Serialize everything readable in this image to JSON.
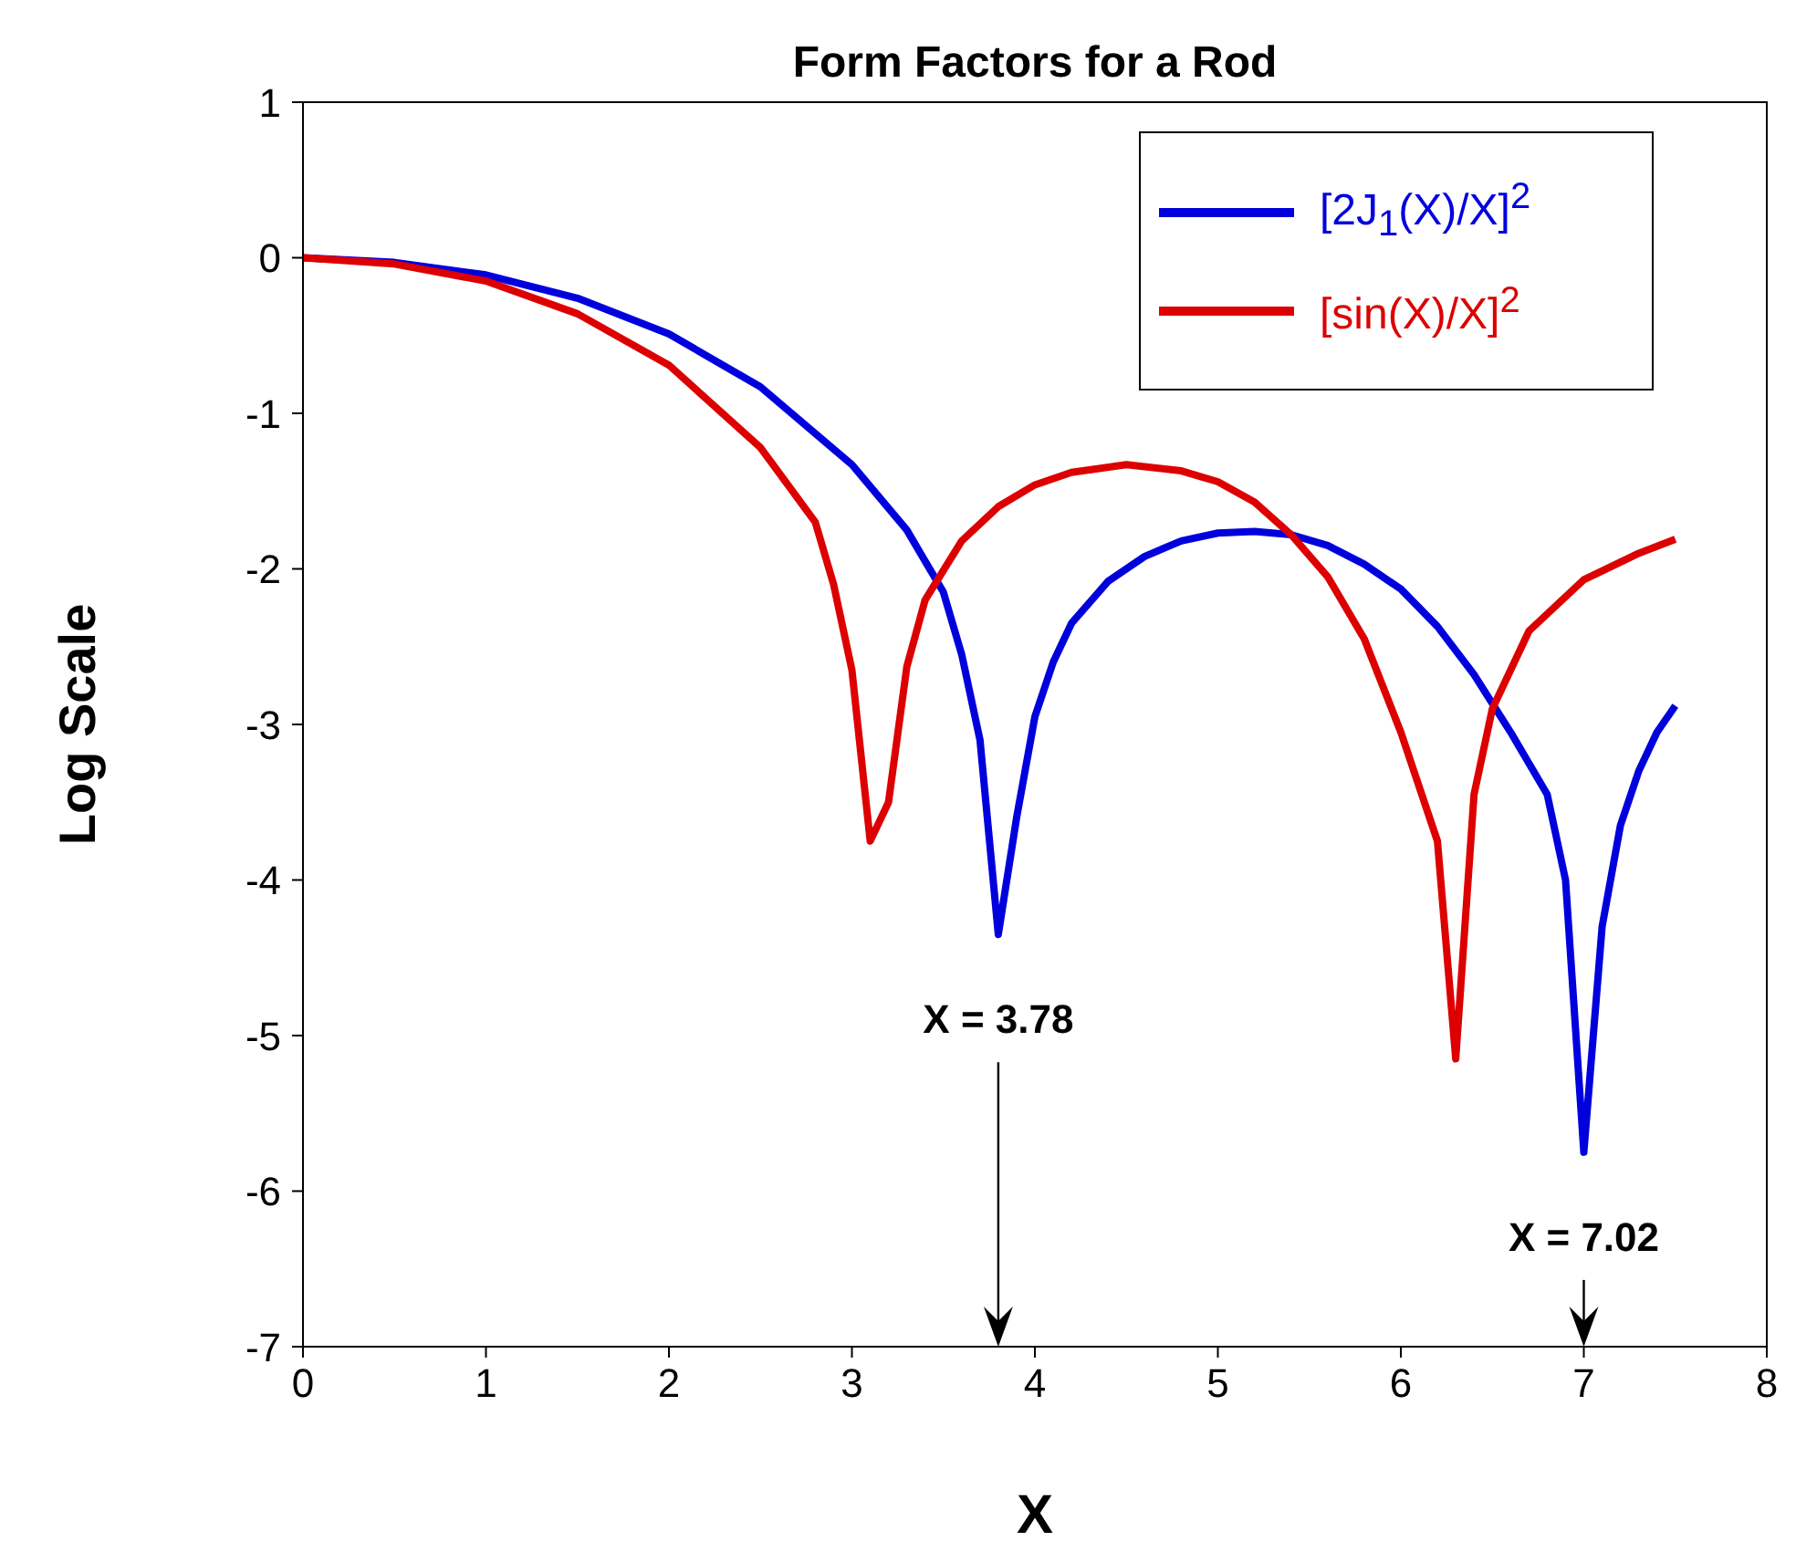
{
  "chart_data": {
    "type": "line",
    "title": "Form Factors for a Rod",
    "xlabel": "X",
    "ylabel": "Log Scale",
    "xlim": [
      0,
      8
    ],
    "xticks": [
      0,
      1,
      2,
      3,
      4,
      5,
      6,
      7,
      8
    ],
    "ylim": [
      -7,
      1
    ],
    "yticks": [
      -7,
      -6,
      -5,
      -4,
      -3,
      -2,
      -1,
      0,
      1
    ],
    "grid": false,
    "legend": "top right",
    "marker": "none",
    "line_style": "solid",
    "series": [
      {
        "name": "[2J$_{1}$(X)/X]$^{2}$",
        "color": "#0000dd",
        "x": [
          0,
          0.5,
          1,
          1.5,
          2,
          2.5,
          3,
          3.3,
          3.5,
          3.6,
          3.7,
          3.8,
          3.9,
          4.0,
          4.1,
          4.2,
          4.4,
          4.6,
          4.8,
          5.0,
          5.2,
          5.4,
          5.6,
          5.8,
          6.0,
          6.2,
          6.4,
          6.6,
          6.8,
          6.9,
          7.0,
          7.1,
          7.2,
          7.3,
          7.4,
          7.5
        ],
        "values": [
          0,
          -0.03,
          -0.11,
          -0.26,
          -0.49,
          -0.83,
          -1.33,
          -1.75,
          -2.15,
          -2.55,
          -3.1,
          -4.35,
          -3.6,
          -2.95,
          -2.6,
          -2.35,
          -2.08,
          -1.92,
          -1.82,
          -1.77,
          -1.76,
          -1.78,
          -1.85,
          -1.97,
          -2.13,
          -2.37,
          -2.68,
          -3.05,
          -3.45,
          -4.0,
          -5.75,
          -4.3,
          -3.65,
          -3.3,
          -3.05,
          -2.88
        ]
      },
      {
        "name": "[sin(X)/X]$^{2}$",
        "color": "#dd0000",
        "x": [
          0,
          0.5,
          1,
          1.5,
          2,
          2.5,
          2.8,
          2.9,
          3.0,
          3.1,
          3.2,
          3.3,
          3.4,
          3.6,
          3.8,
          4.0,
          4.2,
          4.5,
          4.8,
          5.0,
          5.2,
          5.4,
          5.6,
          5.8,
          6.0,
          6.1,
          6.2,
          6.3,
          6.4,
          6.5,
          6.7,
          7.0,
          7.3,
          7.5
        ],
        "values": [
          0,
          -0.04,
          -0.15,
          -0.36,
          -0.69,
          -1.22,
          -1.7,
          -2.1,
          -2.65,
          -3.75,
          -3.5,
          -2.63,
          -2.2,
          -1.82,
          -1.6,
          -1.46,
          -1.38,
          -1.33,
          -1.37,
          -1.44,
          -1.57,
          -1.78,
          -2.05,
          -2.45,
          -3.05,
          -3.4,
          -3.75,
          -5.15,
          -3.45,
          -2.9,
          -2.4,
          -2.07,
          -1.9,
          -1.81
        ]
      }
    ],
    "annotations": [
      {
        "text": "X = 3.78",
        "x": 3.8,
        "y": -4.35
      },
      {
        "text": "X = 7.02",
        "x": 7.0,
        "y": -5.75
      }
    ]
  }
}
